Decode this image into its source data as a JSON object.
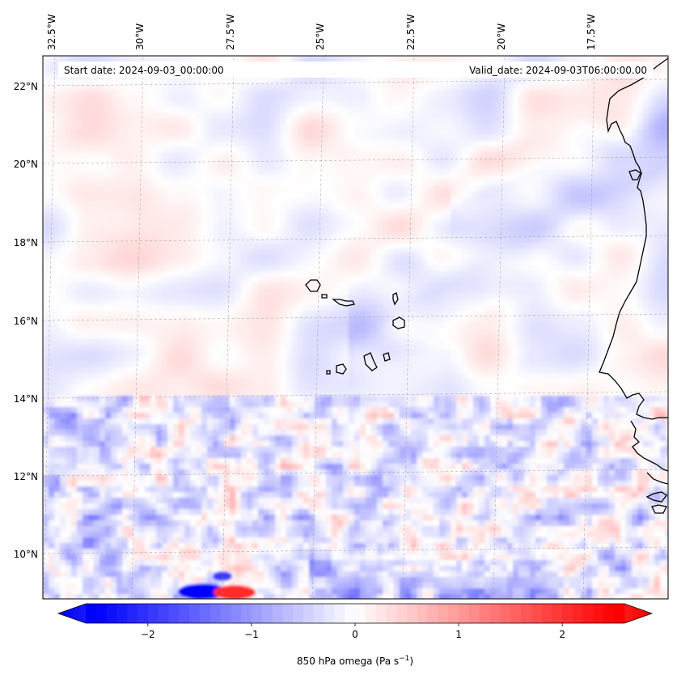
{
  "map": {
    "start_date": "Start date: 2024-09-03_00:00:00",
    "valid_date": "Valid_date: 2024-09-03T06:00:00.00",
    "lon_labels": [
      "32.5°W",
      "30°W",
      "27.5°W",
      "25°W",
      "22.5°W",
      "20°W",
      "17.5°W"
    ],
    "lat_labels": [
      "22°N",
      "20°N",
      "18°N",
      "16°N",
      "14°N",
      "12°N",
      "10°N"
    ],
    "extent": {
      "lon_min": -33.5,
      "lon_max": -16.2,
      "lat_min": 8.9,
      "lat_max": 22.8
    },
    "colors": {
      "land_outline": "#000000",
      "negative": "#0000ff",
      "positive": "#ff0000",
      "neutral": "#ffffff"
    }
  },
  "colorbar": {
    "ticks": [
      "−2",
      "−1",
      "0",
      "1",
      "2"
    ],
    "tick_values": [
      -2,
      -1,
      0,
      1,
      2
    ],
    "range": [
      -2.6,
      2.6
    ],
    "label_main": "850 hPa omega (Pa s",
    "label_sup": "−1",
    "label_end": ")"
  }
}
